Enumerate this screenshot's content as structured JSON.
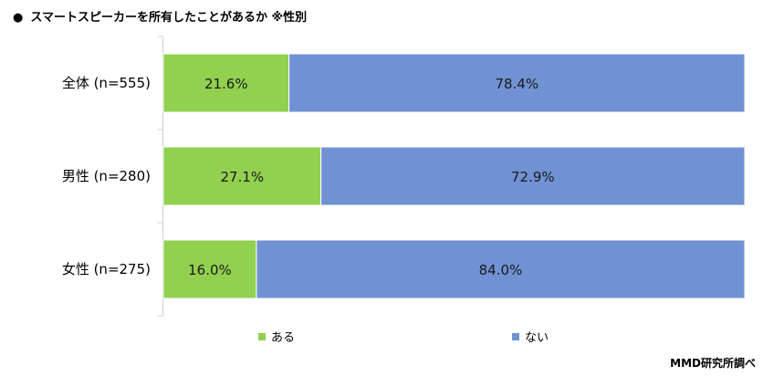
{
  "title": {
    "bullet": "●",
    "text": "スマートスピーカーを所有したことがあるか ※性別"
  },
  "source": "MMD研究所調べ",
  "colors": {
    "series_aru": "#92d050",
    "series_nai": "#7092d3",
    "axis": "#d0d0d0"
  },
  "chart_data": {
    "type": "bar",
    "orientation": "horizontal",
    "stacked": true,
    "percent": true,
    "categories": [
      "全体 (n=555)",
      "男性 (n=280)",
      "女性 (n=275)"
    ],
    "series": [
      {
        "name": "ある",
        "values": [
          21.6,
          27.1,
          16.0
        ],
        "labels": [
          "21.6%",
          "27.1%",
          "16.0%"
        ]
      },
      {
        "name": "ない",
        "values": [
          78.4,
          72.9,
          84.0
        ],
        "labels": [
          "78.4%",
          "72.9%",
          "84.0%"
        ]
      }
    ],
    "xlim": [
      0,
      100
    ],
    "legend": "bottom",
    "grid": false
  }
}
